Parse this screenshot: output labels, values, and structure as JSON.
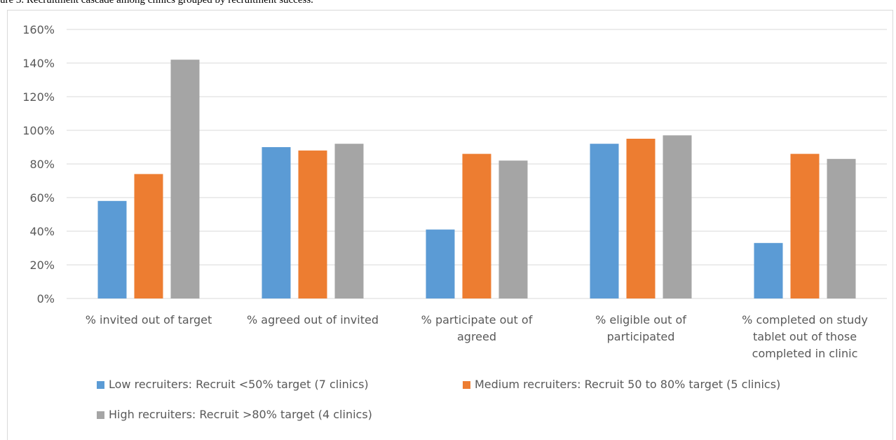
{
  "caption": "ure 3. Recruitment cascade among clinics grouped by recruitment success.",
  "chart_data": {
    "type": "bar",
    "categories": [
      [
        "% invited out of target"
      ],
      [
        "% agreed out of invited"
      ],
      [
        "% participate out of",
        "agreed"
      ],
      [
        "% eligible out of",
        "participated"
      ],
      [
        "% completed on study",
        "tablet out of those",
        "completed in clinic"
      ]
    ],
    "series": [
      {
        "name": "Low recruiters: Recruit <50% target (7 clinics)",
        "color": "#5b9bd5",
        "values": [
          58,
          90,
          41,
          92,
          33
        ]
      },
      {
        "name": "Medium recruiters: Recruit 50 to 80% target (5 clinics)",
        "color": "#ed7d31",
        "values": [
          74,
          88,
          86,
          95,
          86
        ]
      },
      {
        "name": "High recruiters: Recruit >80% target (4 clinics)",
        "color": "#a5a5a5",
        "values": [
          142,
          92,
          82,
          97,
          83
        ]
      }
    ],
    "yticks": [
      "0%",
      "20%",
      "40%",
      "60%",
      "80%",
      "100%",
      "120%",
      "140%",
      "160%"
    ],
    "ylim": [
      0,
      160
    ],
    "grid": true,
    "legend_position": "bottom"
  }
}
